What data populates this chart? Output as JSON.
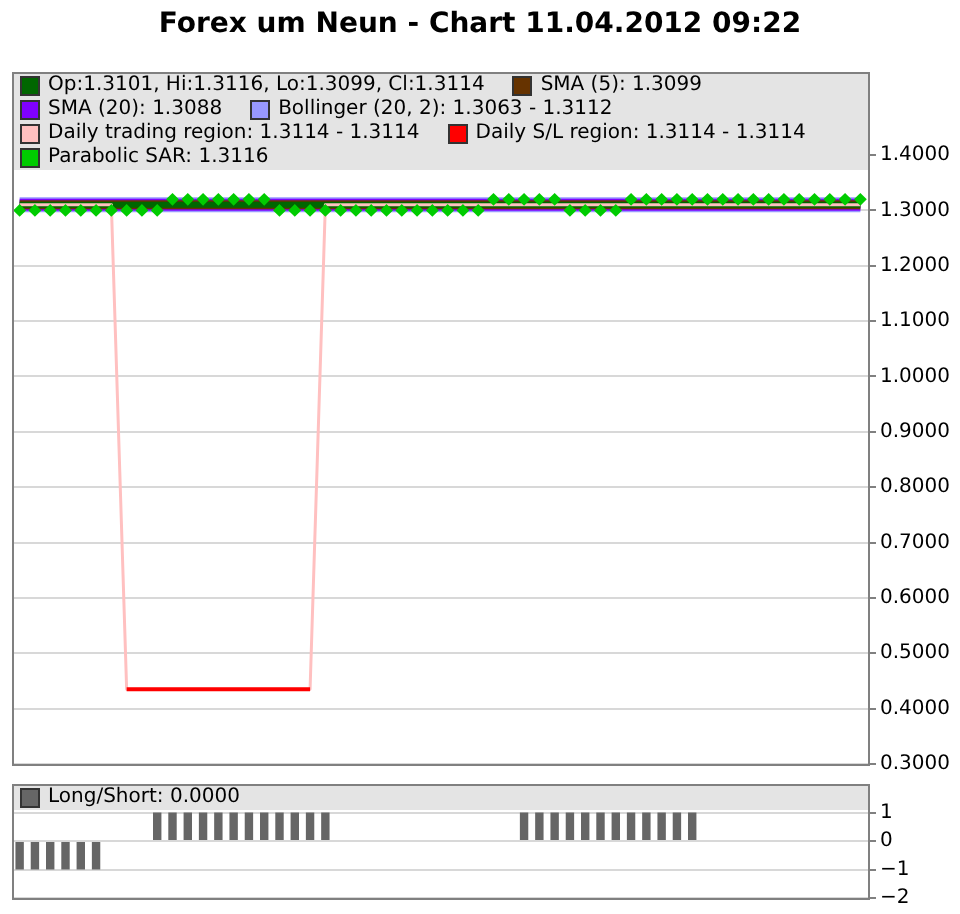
{
  "chart_data": [
    {
      "type": "line",
      "title": "Forex um Neun - Chart 11.04.2012 09:22",
      "categories": [
        null,
        null,
        null,
        null,
        null,
        null,
        null,
        null,
        null,
        null,
        null,
        null,
        null,
        null,
        null,
        null,
        null,
        null,
        null,
        null,
        null,
        null,
        null,
        null,
        null,
        null,
        null,
        null,
        null,
        null,
        null,
        null,
        null,
        null,
        null,
        null,
        null,
        null,
        null,
        null,
        null,
        null,
        null,
        null,
        null,
        null,
        null,
        null,
        null,
        null,
        null,
        null,
        null,
        null,
        null,
        null
      ],
      "ylim": [
        0.3,
        1.55
      ],
      "yticks": [
        {
          "value": 0.3,
          "label": "0.3000"
        },
        {
          "value": 0.4,
          "label": "0.4000"
        },
        {
          "value": 0.5,
          "label": "0.5000"
        },
        {
          "value": 0.6,
          "label": "0.6000"
        },
        {
          "value": 0.7,
          "label": "0.7000"
        },
        {
          "value": 0.8,
          "label": "0.8000"
        },
        {
          "value": 0.9,
          "label": "0.9000"
        },
        {
          "value": 1.0,
          "label": "1.0000"
        },
        {
          "value": 1.1,
          "label": "1.1000"
        },
        {
          "value": 1.2,
          "label": "1.2000"
        },
        {
          "value": 1.3,
          "label": "1.3000"
        },
        {
          "value": 1.4,
          "label": "1.4000"
        }
      ],
      "grid": "y",
      "legend": "top left",
      "marker": "none",
      "line_style": "solid",
      "series": [
        {
          "name": "Op:1.3101, Hi:1.3116, Lo:1.3099, Cl:1.3114",
          "color": "#006600",
          "values": [
            1.31,
            1.31,
            1.31,
            1.31,
            1.31,
            1.31,
            1.31,
            1.31,
            1.31,
            1.31,
            1.31,
            1.31,
            1.31,
            1.31,
            1.31,
            1.31,
            1.31,
            1.31,
            1.31,
            1.31,
            1.31,
            1.31,
            1.31,
            1.31,
            1.31,
            1.31,
            1.31,
            1.31,
            1.31,
            1.31,
            1.31,
            1.31,
            1.31,
            1.31,
            1.31,
            1.31,
            1.31,
            1.31,
            1.31,
            1.31,
            1.31,
            1.31,
            1.31,
            1.31,
            1.31,
            1.31,
            1.31,
            1.31,
            1.31,
            1.31,
            1.31,
            1.31,
            1.31,
            1.31,
            1.31,
            1.31
          ]
        },
        {
          "name": "SMA (5): 1.3099",
          "color": "#663300",
          "values": [
            1.31,
            1.31,
            1.31,
            1.31,
            1.31,
            1.31,
            1.31,
            1.31,
            1.31,
            1.31,
            1.31,
            1.31,
            1.31,
            1.31,
            1.31,
            1.31,
            1.31,
            1.31,
            1.31,
            1.31,
            1.31,
            1.31,
            1.31,
            1.31,
            1.31,
            1.31,
            1.31,
            1.31,
            1.31,
            1.31,
            1.31,
            1.31,
            1.31,
            1.31,
            1.31,
            1.31,
            1.31,
            1.31,
            1.31,
            1.31,
            1.31,
            1.31,
            1.31,
            1.31,
            1.31,
            1.31,
            1.31,
            1.31,
            1.31,
            1.31,
            1.31,
            1.31,
            1.31,
            1.31,
            1.31,
            1.31
          ]
        },
        {
          "name": "SMA (20): 1.3088",
          "color": "#8000ff",
          "values": [
            1.31,
            1.31,
            1.31,
            1.31,
            1.31,
            1.31,
            1.31,
            1.31,
            1.31,
            1.31,
            1.31,
            1.31,
            1.31,
            1.31,
            1.31,
            1.31,
            1.31,
            1.31,
            1.31,
            1.31,
            1.31,
            1.31,
            1.31,
            1.31,
            1.31,
            1.31,
            1.31,
            1.31,
            1.31,
            1.31,
            1.31,
            1.31,
            1.31,
            1.31,
            1.31,
            1.31,
            1.31,
            1.31,
            1.31,
            1.31,
            1.31,
            1.31,
            1.31,
            1.31,
            1.31,
            1.31,
            1.31,
            1.31,
            1.31,
            1.31,
            1.31,
            1.31,
            1.31,
            1.31,
            1.31,
            1.31
          ]
        },
        {
          "name": "Bollinger (20, 2): 1.3063 - 1.3112",
          "color": "#9999ff",
          "values": [
            1.31,
            1.31,
            1.31,
            1.31,
            1.31,
            1.31,
            1.31,
            1.31,
            1.31,
            1.31,
            1.31,
            1.31,
            1.31,
            1.31,
            1.31,
            1.31,
            1.31,
            1.31,
            1.31,
            1.31,
            1.31,
            1.31,
            1.31,
            1.31,
            1.31,
            1.31,
            1.31,
            1.31,
            1.31,
            1.31,
            1.31,
            1.31,
            1.31,
            1.31,
            1.31,
            1.31,
            1.31,
            1.31,
            1.31,
            1.31,
            1.31,
            1.31,
            1.31,
            1.31,
            1.31,
            1.31,
            1.31,
            1.31,
            1.31,
            1.31,
            1.31,
            1.31,
            1.31,
            1.31,
            1.31,
            1.31
          ]
        },
        {
          "name": "Daily trading region: 1.3114 - 1.3114",
          "color": "#ffc0c0",
          "values": [
            1.31,
            1.31,
            1.31,
            1.31,
            1.31,
            1.31,
            1.31,
            0.435,
            0.435,
            0.435,
            0.435,
            0.435,
            0.435,
            0.435,
            0.435,
            0.435,
            0.435,
            0.435,
            0.435,
            0.435,
            1.31,
            1.31,
            1.31,
            1.31,
            1.31,
            1.31,
            1.31,
            1.31,
            1.31,
            1.31,
            1.31,
            1.31,
            1.31,
            1.31,
            1.31,
            1.31,
            1.31,
            1.31,
            1.31,
            1.31,
            1.31,
            1.31,
            1.31,
            1.31,
            1.31,
            1.31,
            1.31,
            1.31,
            1.31,
            1.31,
            1.31,
            1.31,
            1.31,
            1.31,
            1.31,
            1.31
          ]
        },
        {
          "name": "Daily S/L region: 1.3114 - 1.3114",
          "color": "#ff0000",
          "values": [
            null,
            null,
            null,
            null,
            null,
            null,
            null,
            0.435,
            0.435,
            0.435,
            0.435,
            0.435,
            0.435,
            0.435,
            0.435,
            0.435,
            0.435,
            0.435,
            0.435,
            0.435,
            null,
            null,
            null,
            null,
            null,
            null,
            null,
            null,
            null,
            null,
            null,
            null,
            null,
            null,
            null,
            null,
            null,
            null,
            null,
            null,
            null,
            null,
            null,
            null,
            null,
            null,
            null,
            null,
            null,
            null,
            null,
            null,
            null,
            null,
            null,
            null
          ]
        },
        {
          "name": "Parabolic SAR: 1.3116",
          "color": "#00cc00",
          "type": "scatter",
          "marker": "diamond",
          "values": [
            1.3,
            1.3,
            1.3,
            1.3,
            1.3,
            1.3,
            1.3,
            1.3,
            1.3,
            1.3,
            1.32,
            1.32,
            1.32,
            1.32,
            1.32,
            1.32,
            1.32,
            1.3,
            1.3,
            1.3,
            1.3,
            1.3,
            1.3,
            1.3,
            1.3,
            1.3,
            1.3,
            1.3,
            1.3,
            1.3,
            1.3,
            1.32,
            1.32,
            1.32,
            1.32,
            1.32,
            1.3,
            1.3,
            1.3,
            1.3,
            1.32,
            1.32,
            1.32,
            1.32,
            1.32,
            1.32,
            1.32,
            1.32,
            1.32,
            1.32,
            1.32,
            1.32,
            1.32,
            1.32,
            1.32,
            1.32
          ]
        }
      ]
    },
    {
      "type": "bar",
      "categories": [
        null,
        null,
        null,
        null,
        null,
        null,
        null,
        null,
        null,
        null,
        null,
        null,
        null,
        null,
        null,
        null,
        null,
        null,
        null,
        null,
        null,
        null,
        null,
        null,
        null,
        null,
        null,
        null,
        null,
        null,
        null,
        null,
        null,
        null,
        null,
        null,
        null,
        null,
        null,
        null,
        null,
        null,
        null,
        null,
        null,
        null,
        null,
        null,
        null,
        null,
        null,
        null,
        null,
        null,
        null,
        null
      ],
      "ylim": [
        -2,
        2
      ],
      "yticks": [
        {
          "value": -2,
          "label": "−2"
        },
        {
          "value": -1,
          "label": "−1"
        },
        0,
        1
      ],
      "grid": "y",
      "legend": "top left",
      "series": [
        {
          "name": "Long/Short: 0.0000",
          "color": "#666666",
          "values": [
            -1,
            -1,
            -1,
            -1,
            -1,
            -1,
            0,
            0,
            0,
            1,
            1,
            1,
            1,
            1,
            1,
            1,
            1,
            1,
            1,
            1,
            1,
            0,
            0,
            0,
            0,
            0,
            0,
            0,
            0,
            0,
            0,
            0,
            0,
            1,
            1,
            1,
            1,
            1,
            1,
            1,
            1,
            1,
            1,
            1,
            1,
            0,
            0,
            0,
            0,
            0,
            0,
            0,
            0,
            0,
            0,
            0
          ]
        }
      ]
    }
  ]
}
